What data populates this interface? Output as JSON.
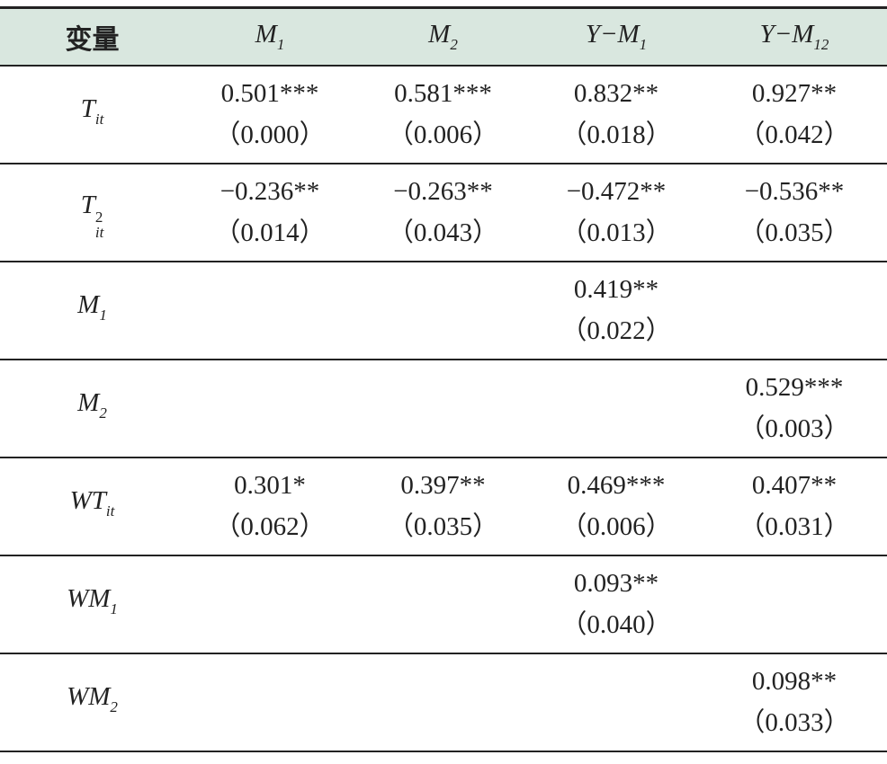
{
  "header": {
    "label": "变量",
    "columns": [
      {
        "base": "M",
        "sub": "1"
      },
      {
        "base": "M",
        "sub": "2"
      },
      {
        "base": "Y−M",
        "sub": "1"
      },
      {
        "base": "Y−M",
        "sub": "12"
      }
    ]
  },
  "rows": [
    {
      "label": {
        "base": "T",
        "sub": "it"
      },
      "cells": [
        {
          "coef": "0.501***",
          "se": "（0.000）"
        },
        {
          "coef": "0.581***",
          "se": "（0.006）"
        },
        {
          "coef": "0.832**",
          "se": "（0.018）"
        },
        {
          "coef": "0.927**",
          "se": "（0.042）"
        }
      ]
    },
    {
      "label": {
        "base": "T",
        "sup": "2",
        "sub": "it"
      },
      "cells": [
        {
          "coef": "−0.236**",
          "se": "（0.014）"
        },
        {
          "coef": "−0.263**",
          "se": "（0.043）"
        },
        {
          "coef": "−0.472**",
          "se": "（0.013）"
        },
        {
          "coef": "−0.536**",
          "se": "（0.035）"
        }
      ]
    },
    {
      "label": {
        "base": "M",
        "sub": "1"
      },
      "cells": [
        null,
        null,
        {
          "coef": "0.419**",
          "se": "（0.022）"
        },
        null
      ]
    },
    {
      "label": {
        "base": "M",
        "sub": "2"
      },
      "cells": [
        null,
        null,
        null,
        {
          "coef": "0.529***",
          "se": "（0.003）"
        }
      ]
    },
    {
      "label": {
        "base": "WT",
        "sub": "it"
      },
      "cells": [
        {
          "coef": "0.301*",
          "se": "（0.062）"
        },
        {
          "coef": "0.397**",
          "se": "（0.035）"
        },
        {
          "coef": "0.469***",
          "se": "（0.006）"
        },
        {
          "coef": "0.407**",
          "se": "（0.031）"
        }
      ]
    },
    {
      "label": {
        "base": "WM",
        "sub": "1"
      },
      "cells": [
        null,
        null,
        {
          "coef": "0.093**",
          "se": "（0.040）"
        },
        null
      ]
    },
    {
      "label": {
        "base": "WM",
        "sub": "2"
      },
      "cells": [
        null,
        null,
        null,
        {
          "coef": "0.098**",
          "se": "（0.033）"
        }
      ]
    }
  ]
}
